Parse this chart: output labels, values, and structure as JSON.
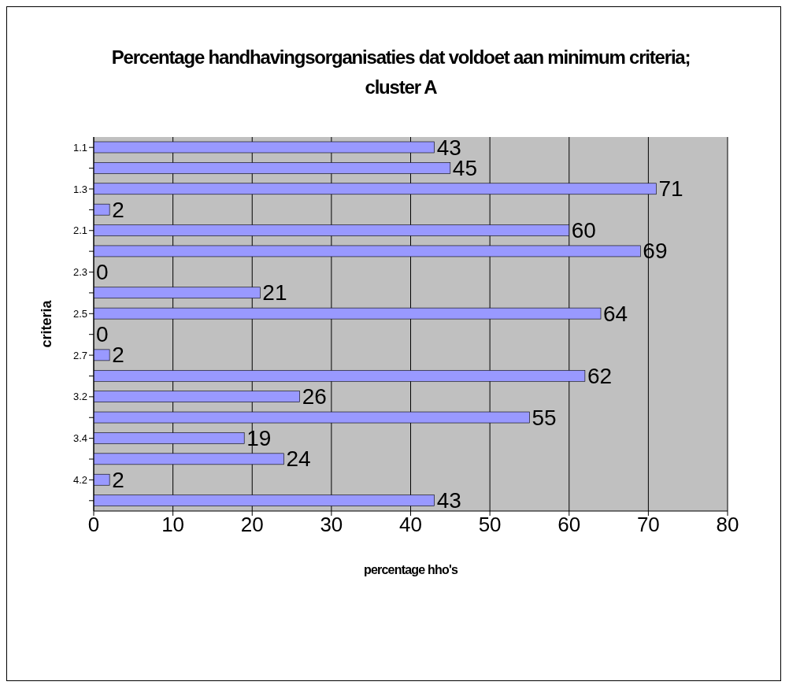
{
  "chart_data": {
    "type": "bar",
    "orientation": "horizontal",
    "title": "Percentage handhavingsorganisaties dat voldoet aan minimum criteria; cluster A",
    "xlabel": "percentage hho's",
    "ylabel": "criteria",
    "categories": [
      "1.1",
      null,
      "1.3",
      null,
      "2.1",
      null,
      "2.3",
      null,
      "2.5",
      null,
      "2.7",
      null,
      "3.2",
      null,
      "3.4",
      null,
      "4.2",
      null
    ],
    "values": [
      43,
      45,
      71,
      2,
      60,
      69,
      0,
      21,
      64,
      0,
      2,
      62,
      26,
      55,
      19,
      24,
      2,
      43
    ],
    "color": "#9999ff",
    "xlim": [
      0,
      80
    ],
    "xticks": [
      0,
      10,
      20,
      30,
      40,
      50,
      60,
      70,
      80
    ],
    "grid": "x",
    "data_labels": true
  }
}
